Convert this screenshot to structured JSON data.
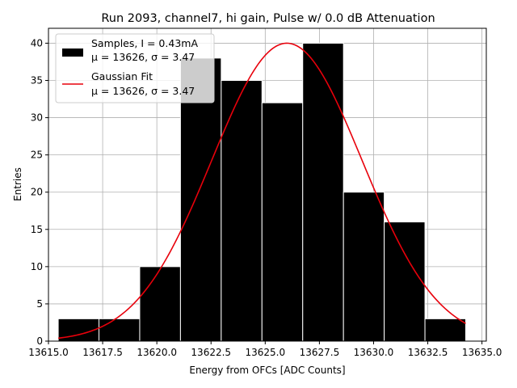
{
  "chart_data": {
    "type": "bar",
    "title": "Run 2093, channel7, hi gain, Pulse w/ 0.0 dB Attenuation",
    "xlabel": "Energy from OFCs [ADC Counts]",
    "ylabel": "Entries",
    "xlim": [
      13615.0,
      13635.2
    ],
    "ylim": [
      0,
      42
    ],
    "grid": true,
    "legend_position": "top-left",
    "bin_edges": [
      13615.45,
      13617.33,
      13619.21,
      13621.09,
      13622.97,
      13624.85,
      13626.73,
      13628.61,
      13630.49,
      13632.37,
      13634.25
    ],
    "counts": [
      3,
      3,
      10,
      38,
      35,
      32,
      40,
      20,
      16,
      3
    ],
    "x_ticks": [
      13615.0,
      13617.5,
      13620.0,
      13622.5,
      13625.0,
      13627.5,
      13630.0,
      13632.5,
      13635.0
    ],
    "x_tick_labels": [
      "13615.0",
      "13617.5",
      "13620.0",
      "13622.5",
      "13625.0",
      "13627.5",
      "13630.0",
      "13632.5",
      "13635.0"
    ],
    "y_ticks": [
      0,
      5,
      10,
      15,
      20,
      25,
      30,
      35,
      40
    ],
    "y_tick_labels": [
      "0",
      "5",
      "10",
      "15",
      "20",
      "25",
      "30",
      "35",
      "40"
    ],
    "fit": {
      "type": "gaussian",
      "amplitude": 40,
      "mean": 13626.0,
      "sigma": 3.47,
      "x_range": [
        13615.45,
        13634.25
      ]
    },
    "series": [
      {
        "name": "Samples, I = 0.43mA",
        "name_line2": "μ = 13626, σ = 3.47",
        "kind": "histogram",
        "color": "#000000"
      },
      {
        "name": "Gaussian Fit",
        "name_line2": "μ = 13626, σ = 3.47",
        "kind": "line",
        "color": "#e8000b"
      }
    ]
  }
}
